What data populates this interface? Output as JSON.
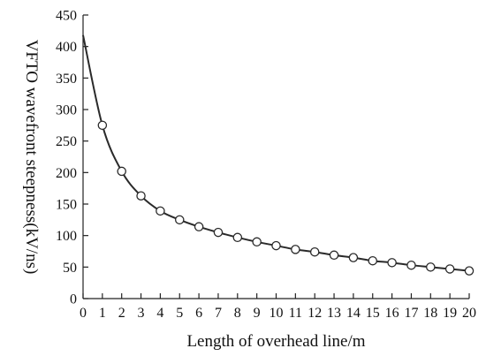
{
  "chart_data": {
    "type": "line",
    "title": "",
    "xlabel": "Length of overhead line/m",
    "ylabel": "VFTO wavefront steepness(kV/ns)",
    "xlim": [
      0,
      20
    ],
    "ylim": [
      0,
      450
    ],
    "xticks": [
      "0",
      "1",
      "2",
      "3",
      "4",
      "5",
      "6",
      "7",
      "8",
      "9",
      "10",
      "11",
      "12",
      "13",
      "14",
      "15",
      "16",
      "17",
      "18",
      "19",
      "20"
    ],
    "yticks": [
      "0",
      "50",
      "100",
      "150",
      "200",
      "250",
      "300",
      "350",
      "400",
      "450"
    ],
    "grid": false,
    "legend": "none",
    "line_color": "#2a2a2a",
    "series": [
      {
        "x": [
          0,
          1,
          2,
          3,
          4,
          5,
          6,
          7,
          8,
          9,
          10,
          11,
          12,
          13,
          14,
          15,
          16,
          17,
          18,
          19,
          20
        ],
        "y": [
          418,
          275,
          202,
          163,
          139,
          125,
          114,
          105,
          97,
          90,
          84,
          78,
          74,
          69,
          65,
          60,
          57,
          53,
          50,
          47,
          44
        ],
        "markers": [
          1,
          2,
          3,
          4,
          5,
          6,
          7,
          8,
          9,
          10,
          11,
          12,
          13,
          14,
          15,
          16,
          17,
          18,
          19,
          20
        ]
      }
    ]
  }
}
